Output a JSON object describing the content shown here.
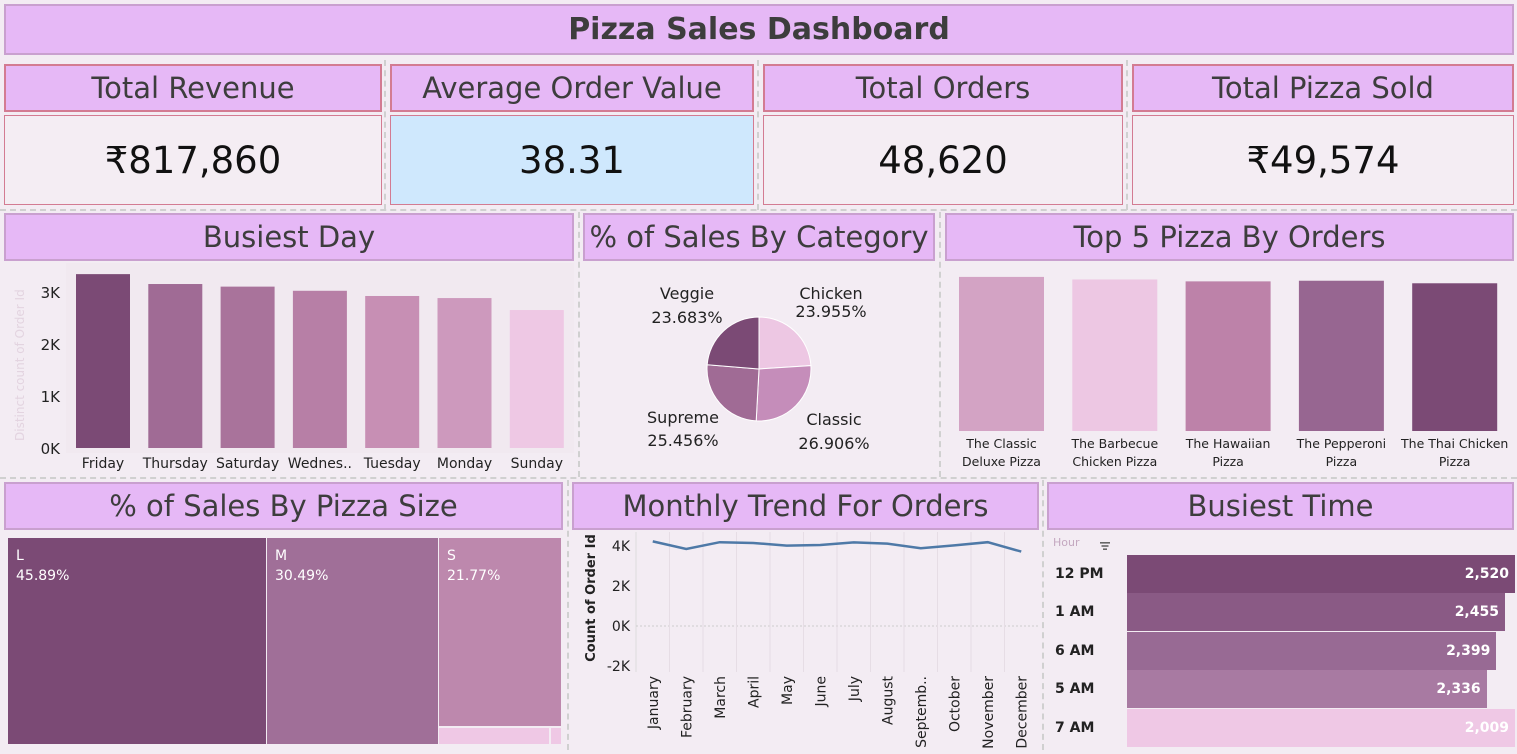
{
  "title": "Pizza Sales Dashboard",
  "kpis": [
    {
      "label": "Total Revenue",
      "value": "₹817,860"
    },
    {
      "label": "Average Order Value",
      "value": "38.31"
    },
    {
      "label": "Total Orders",
      "value": "48,620"
    },
    {
      "label": "Total Pizza Sold",
      "value": "₹49,574"
    }
  ],
  "panels": {
    "busiest_day": "Busiest Day",
    "sales_by_category": "% of Sales By Category",
    "top5": "Top 5 Pizza By Orders",
    "sales_by_size": "% of Sales By Pizza Size",
    "monthly_trend": "Monthly Trend For Orders",
    "busiest_time": "Busiest Time"
  },
  "colors": {
    "header_bg": "#e6b8f6",
    "kpi_border": "#d37b92",
    "highlight_bg": "#cfe8fd",
    "line": "#4e79a7",
    "plum_dark": "#7b4a75",
    "plum_light": "#efc8e5"
  },
  "chart_data": [
    {
      "id": "busiest_day",
      "type": "bar",
      "ylabel": "Distinct count of Order Id",
      "yticks": [
        "0K",
        "1K",
        "2K",
        "3K"
      ],
      "ylim": [
        0,
        3400
      ],
      "categories": [
        "Friday",
        "Thursday",
        "Saturday",
        "Wednes..",
        "Tuesday",
        "Monday",
        "Sunday"
      ],
      "values": [
        3340,
        3150,
        3100,
        3020,
        2920,
        2880,
        2650
      ],
      "colors": [
        "#7b4a75",
        "#a06b95",
        "#a9739b",
        "#b77fa6",
        "#c78fb4",
        "#cd99bd",
        "#eec8e4"
      ]
    },
    {
      "id": "sales_by_category",
      "type": "pie",
      "slices": [
        {
          "name": "Chicken",
          "value": 23.955,
          "label": "23.955%",
          "color": "#edc7e3"
        },
        {
          "name": "Classic",
          "value": 26.906,
          "label": "26.906%",
          "color": "#c58dba"
        },
        {
          "name": "Supreme",
          "value": 25.456,
          "label": "25.456%",
          "color": "#a06b95"
        },
        {
          "name": "Veggie",
          "value": 23.683,
          "label": "23.683%",
          "color": "#7b4a75"
        }
      ]
    },
    {
      "id": "top5",
      "type": "bar",
      "categories": [
        [
          "The Classic",
          "Deluxe Pizza"
        ],
        [
          "The Barbecue",
          "Chicken Pizza"
        ],
        [
          "The Hawaiian",
          "Pizza"
        ],
        [
          "The Pepperoni",
          "Pizza"
        ],
        [
          "The Thai Chicken",
          "Pizza"
        ]
      ],
      "values": [
        2420,
        2380,
        2350,
        2360,
        2320
      ],
      "ylim": [
        0,
        2450
      ],
      "colors": [
        "#d3a3c4",
        "#edc7e3",
        "#bd82a9",
        "#976691",
        "#7b4a75"
      ]
    },
    {
      "id": "sales_by_size",
      "type": "treemap",
      "cells": [
        {
          "name": "L",
          "value": 45.89,
          "label": "45.89%",
          "color": "#7b4a75"
        },
        {
          "name": "M",
          "value": 30.49,
          "label": "30.49%",
          "color": "#a06f98"
        },
        {
          "name": "S",
          "value": 21.77,
          "label": "21.77%",
          "color": "#bd88ad"
        }
      ]
    },
    {
      "id": "monthly_trend",
      "type": "line",
      "ylabel": "Count of Order Id",
      "yticks": [
        "-2K",
        "0K",
        "2K",
        "4K"
      ],
      "ylim": [
        -2000,
        4400
      ],
      "categories": [
        "January",
        "February",
        "March",
        "April",
        "May",
        "June",
        "July",
        "August",
        "Septemb..",
        "October",
        "November",
        "December"
      ],
      "values": [
        4230,
        3850,
        4190,
        4150,
        4020,
        4050,
        4180,
        4120,
        3890,
        4030,
        4190,
        3720
      ]
    },
    {
      "id": "busiest_time",
      "type": "bar",
      "xlabel": "Hour",
      "categories": [
        "12 PM",
        "1 AM",
        "6 AM",
        "5 AM",
        "7 AM"
      ],
      "values": [
        2520,
        2455,
        2399,
        2336,
        2009
      ],
      "labels": [
        "2,520",
        "2,455",
        "2,399",
        "2,336",
        "2,009"
      ],
      "colors": [
        "#7b4a75",
        "#8a5a85",
        "#986a94",
        "#a87aa2",
        "#efc8e5"
      ]
    }
  ]
}
